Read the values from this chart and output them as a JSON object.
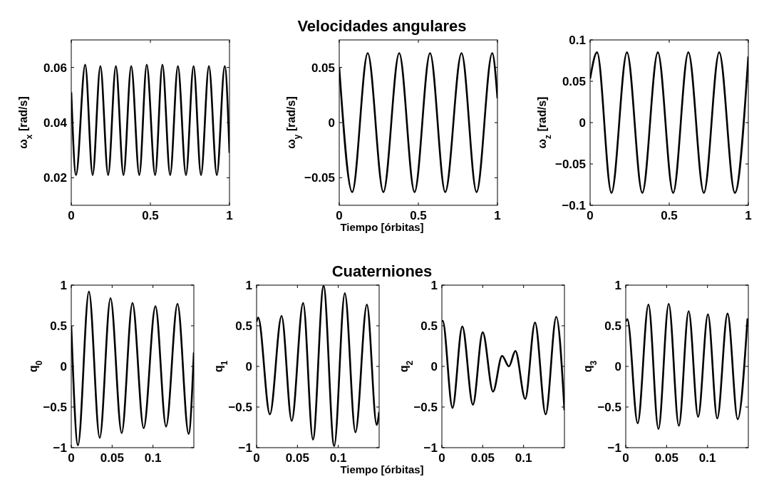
{
  "chart_data": [
    {
      "type": "line",
      "ylabel": "ω$_{x}$ [rad/s]",
      "xlim": [
        0,
        1
      ],
      "ylim": [
        0.01,
        0.07
      ],
      "xticks": [
        0,
        0.5,
        1
      ],
      "yticks": [
        0.02,
        0.04,
        0.06
      ],
      "x": [
        0,
        0.03,
        0.088,
        0.135,
        0.184,
        0.233,
        0.282,
        0.33,
        0.379,
        0.43,
        0.477,
        0.53,
        0.576,
        0.625,
        0.674,
        0.725,
        0.773,
        0.82,
        0.87,
        0.92,
        0.97,
        1
      ],
      "series": [
        {
          "color": "#000000",
          "values": [
            0.051,
            0.021,
            0.061,
            0.021,
            0.0605,
            0.021,
            0.0605,
            0.021,
            0.0605,
            0.021,
            0.061,
            0.021,
            0.061,
            0.021,
            0.0605,
            0.021,
            0.0605,
            0.021,
            0.0605,
            0.021,
            0.0605,
            0.029
          ]
        }
      ]
    },
    {
      "type": "line",
      "title": "Velocidades angulares",
      "xlabel": "Tiempo [órbitas]",
      "ylabel": "ω$_{y}$ [rad/s]",
      "xlim": [
        0,
        1
      ],
      "ylim": [
        -0.075,
        0.075
      ],
      "xticks": [
        0,
        0.5,
        1
      ],
      "yticks": [
        {
          "value": -0.05,
          "label": "−0.05"
        },
        0,
        0.05
      ],
      "x": [
        0,
        0.082,
        0.18,
        0.279,
        0.379,
        0.476,
        0.574,
        0.67,
        0.773,
        0.868,
        0.967,
        1
      ],
      "series": [
        {
          "color": "#000000",
          "values": [
            0.05,
            -0.063,
            0.063,
            -0.063,
            0.063,
            -0.063,
            0.063,
            -0.063,
            0.063,
            -0.063,
            0.063,
            0.022
          ]
        }
      ]
    },
    {
      "type": "line",
      "ylabel": "ω$_{z}$ [rad/s]",
      "xlim": [
        0,
        1
      ],
      "ylim": [
        -0.1,
        0.1
      ],
      "xticks": [
        0,
        0.5,
        1
      ],
      "yticks": [
        {
          "value": -0.1,
          "label": "−0.1"
        },
        {
          "value": -0.05,
          "label": "−0.05"
        },
        0,
        0.05,
        0.1
      ],
      "x": [
        0,
        0.044,
        0.135,
        0.233,
        0.33,
        0.428,
        0.525,
        0.621,
        0.719,
        0.816,
        0.915,
        1
      ],
      "series": [
        {
          "color": "#000000",
          "values": [
            0.053,
            0.085,
            -0.085,
            0.085,
            -0.085,
            0.085,
            -0.085,
            0.085,
            -0.085,
            0.085,
            -0.085,
            0.08
          ]
        }
      ]
    },
    {
      "type": "line",
      "ylabel": "q$_{0}$",
      "xlim": [
        0,
        0.15
      ],
      "ylim": [
        -1,
        1
      ],
      "xticks": [
        0,
        0.05,
        0.1
      ],
      "yticks": [
        {
          "value": -1,
          "label": "−1"
        },
        {
          "value": -0.5,
          "label": "−0.5"
        },
        0,
        0.5,
        1
      ],
      "x": [
        0,
        0.0082,
        0.0216,
        0.0348,
        0.048,
        0.0617,
        0.0749,
        0.0886,
        0.103,
        0.116,
        0.13,
        0.1436,
        0.15
      ],
      "series": [
        {
          "color": "#000000",
          "values": [
            0.5,
            -0.97,
            0.92,
            -0.88,
            0.84,
            -0.82,
            0.78,
            -0.76,
            0.74,
            -0.74,
            0.77,
            -0.83,
            0.17
          ]
        }
      ]
    },
    {
      "type": "line",
      "title": "Cuaterniones",
      "xlabel": "Tiempo [órbitas]",
      "ylabel": "q$_{1}$",
      "xlim": [
        0,
        0.15
      ],
      "ylim": [
        -1,
        1
      ],
      "xticks": [
        0,
        0.05,
        0.1
      ],
      "yticks": [
        {
          "value": -1,
          "label": "−1"
        },
        {
          "value": -0.5,
          "label": "−0.5"
        },
        0,
        0.5,
        1
      ],
      "x": [
        0,
        0.002,
        0.0163,
        0.0306,
        0.043,
        0.057,
        0.069,
        0.082,
        0.095,
        0.108,
        0.121,
        0.135,
        0.147,
        0.15
      ],
      "series": [
        {
          "color": "#000000",
          "values": [
            0.55,
            0.6,
            -0.59,
            0.62,
            -0.67,
            0.78,
            -0.9,
            0.99,
            -0.98,
            0.9,
            -0.81,
            0.76,
            -0.72,
            -0.56
          ]
        }
      ]
    },
    {
      "type": "line",
      "ylabel": "q$_{2}$",
      "xlim": [
        0,
        0.15
      ],
      "ylim": [
        -1,
        1
      ],
      "xticks": [
        0,
        0.05,
        0.1
      ],
      "yticks": [
        {
          "value": -1,
          "label": "−1"
        },
        {
          "value": -0.5,
          "label": "−0.5"
        },
        0,
        0.5,
        1
      ],
      "x": [
        0,
        0.001,
        0.013,
        0.025,
        0.038,
        0.05,
        0.0626,
        0.0737,
        0.082,
        0.09,
        0.102,
        0.114,
        0.127,
        0.14,
        0.15
      ],
      "series": [
        {
          "color": "#000000",
          "values": [
            0.55,
            0.56,
            -0.51,
            0.49,
            -0.47,
            0.42,
            -0.31,
            0.13,
            0,
            0.19,
            -0.4,
            0.54,
            -0.59,
            0.61,
            -0.54
          ]
        }
      ]
    },
    {
      "type": "line",
      "ylabel": "q$_{3}$",
      "xlim": [
        0,
        0.15
      ],
      "ylim": [
        -1,
        1
      ],
      "xticks": [
        0,
        0.05,
        0.1
      ],
      "yticks": [
        {
          "value": -1,
          "label": "−1"
        },
        {
          "value": -0.5,
          "label": "−0.5"
        },
        0,
        0.5,
        1
      ],
      "x": [
        0,
        0.002,
        0.0146,
        0.0278,
        0.04,
        0.0526,
        0.065,
        0.077,
        0.0886,
        0.1006,
        0.112,
        0.1246,
        0.137,
        0.149
      ],
      "series": [
        {
          "color": "#000000",
          "values": [
            0.55,
            0.58,
            -0.7,
            0.76,
            -0.77,
            0.77,
            -0.73,
            0.68,
            -0.62,
            0.64,
            -0.64,
            0.65,
            -0.65,
            0.59
          ]
        }
      ]
    }
  ]
}
